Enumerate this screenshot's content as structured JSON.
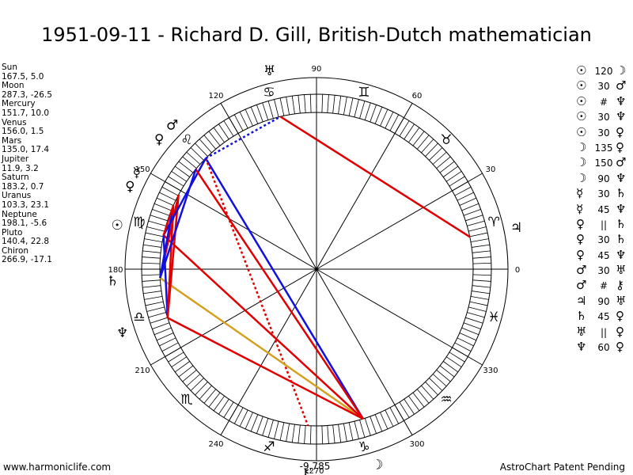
{
  "title": "1951-09-11 - Richard D. Gill, British-Dutch mathematician",
  "planets": [
    {
      "name": "Sun",
      "pos": "167.5, 5.0"
    },
    {
      "name": "Moon",
      "pos": "287.3, -26.5"
    },
    {
      "name": "Mercury",
      "pos": "151.7, 10.0"
    },
    {
      "name": "Venus",
      "pos": "156.0, 1.5"
    },
    {
      "name": "Mars",
      "pos": "135.0, 17.4"
    },
    {
      "name": "Jupiter",
      "pos": "11.9, 3.2"
    },
    {
      "name": "Saturn",
      "pos": "183.2, 0.7"
    },
    {
      "name": "Uranus",
      "pos": "103.3, 23.1"
    },
    {
      "name": "Neptune",
      "pos": "198.1, -5.6"
    },
    {
      "name": "Pluto",
      "pos": "140.4, 22.8"
    },
    {
      "name": "Chiron",
      "pos": "266.9, -17.1"
    }
  ],
  "aspects": [
    {
      "p1": "☉",
      "asp": "120",
      "p2": "☽"
    },
    {
      "p1": "☉",
      "asp": "30",
      "p2": "♂"
    },
    {
      "p1": "☉",
      "asp": "#",
      "p2": "♆"
    },
    {
      "p1": "☉",
      "asp": "30",
      "p2": "♆"
    },
    {
      "p1": "☉",
      "asp": "30",
      "p2": "♀"
    },
    {
      "p1": "☽",
      "asp": "135",
      "p2": "♀"
    },
    {
      "p1": "☽",
      "asp": "150",
      "p2": "♂"
    },
    {
      "p1": "☽",
      "asp": "90",
      "p2": "♆"
    },
    {
      "p1": "☿",
      "asp": "30",
      "p2": "♄"
    },
    {
      "p1": "☿",
      "asp": "45",
      "p2": "♆"
    },
    {
      "p1": "♀",
      "asp": "||",
      "p2": "♄"
    },
    {
      "p1": "♀",
      "asp": "30",
      "p2": "♄"
    },
    {
      "p1": "♀",
      "asp": "45",
      "p2": "♆"
    },
    {
      "p1": "♂",
      "asp": "30",
      "p2": "♅"
    },
    {
      "p1": "♂",
      "asp": "#",
      "p2": "⚷"
    },
    {
      "p1": "♃",
      "asp": "90",
      "p2": "♅"
    },
    {
      "p1": "♄",
      "asp": "45",
      "p2": "♀"
    },
    {
      "p1": "♅",
      "asp": "||",
      "p2": "♀"
    },
    {
      "p1": "♆",
      "asp": "60",
      "p2": "♀"
    }
  ],
  "wheel": {
    "degree_labels": [
      "0",
      "30",
      "60",
      "90",
      "120",
      "150",
      "180",
      "210",
      "240",
      "270",
      "300",
      "330"
    ],
    "signs": [
      "♈",
      "♉",
      "♊",
      "♋",
      "♌",
      "♍",
      "♎",
      "♏",
      "♐",
      "♑",
      "♒",
      "♓"
    ],
    "harmonic_label": "-9,785"
  },
  "footer": {
    "left": "www.harmoniclife.com",
    "right": "AstroChart Patent Pending"
  }
}
